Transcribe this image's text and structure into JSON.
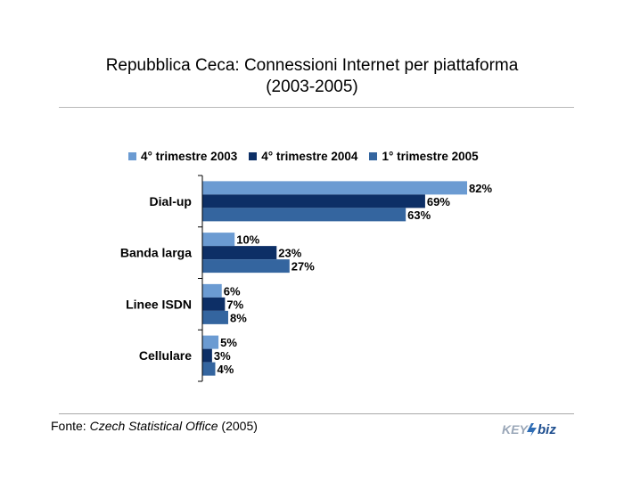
{
  "title_line1": "Repubblica Ceca: Connessioni Internet per piattaforma",
  "title_line2": "(2003-2005)",
  "source": {
    "prefix": "Fonte: ",
    "name": "Czech Statistical Office",
    "suffix": " (2005)"
  },
  "logo": {
    "left": "KEY",
    "right": "biz"
  },
  "colors": {
    "series1": "#6b9bd2",
    "series2": "#0d2f66",
    "series3": "#34659f"
  },
  "chart_data": {
    "type": "bar",
    "orientation": "horizontal",
    "categories": [
      "Dial-up",
      "Banda larga",
      "Linee ISDN",
      "Cellulare"
    ],
    "series": [
      {
        "name": "4° trimestre 2003",
        "values": [
          82,
          10,
          6,
          5
        ],
        "labels": [
          "82%",
          "10%",
          "6%",
          "5%"
        ]
      },
      {
        "name": "4° trimestre 2004",
        "values": [
          69,
          23,
          7,
          3
        ],
        "labels": [
          "69%",
          "23%",
          "7%",
          "3%"
        ]
      },
      {
        "name": "1° trimestre 2005",
        "values": [
          63,
          27,
          8,
          4
        ],
        "labels": [
          "63%",
          "27%",
          "8%",
          "4%"
        ]
      }
    ],
    "value_unit": "%",
    "xlim": [
      0,
      100
    ],
    "grid": false,
    "legend_position": "top"
  }
}
